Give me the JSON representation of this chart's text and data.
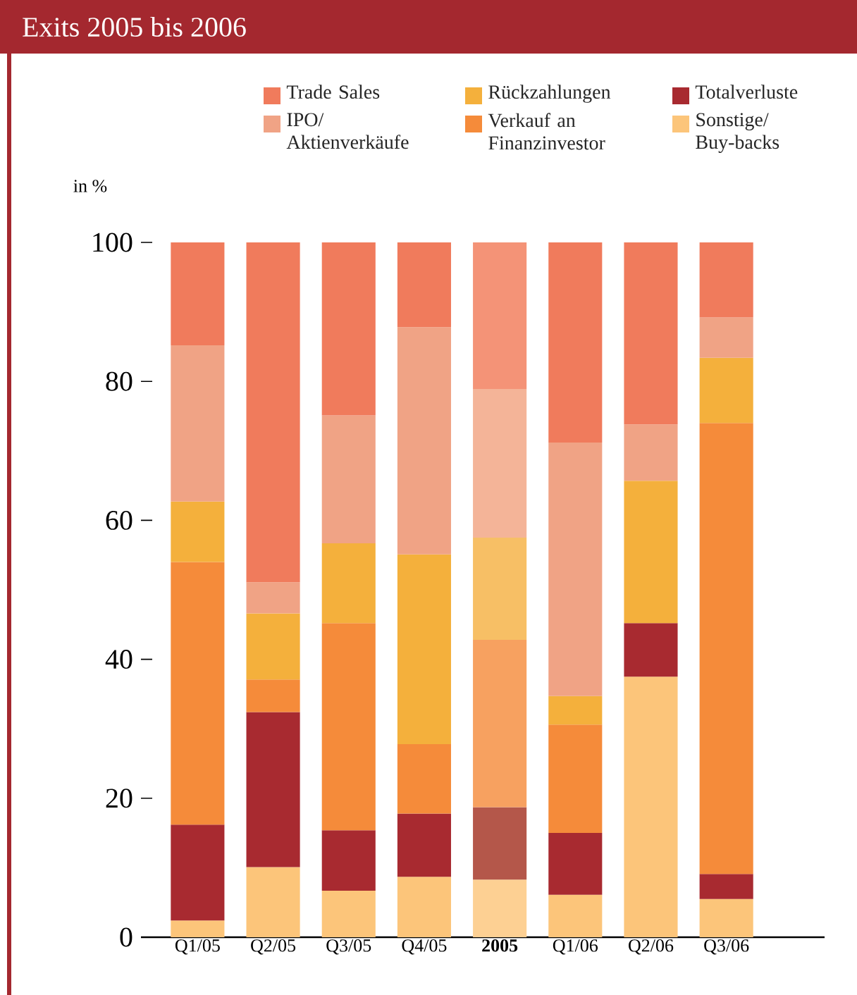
{
  "chart_data": {
    "type": "bar",
    "stacked": true,
    "title": "Exits 2005 bis 2006",
    "ylabel": "in %",
    "categories": [
      "Q1/05",
      "Q2/05",
      "Q3/05",
      "Q4/05",
      "**2005**",
      "Q1/06",
      "Q2/06",
      "Q3/06"
    ],
    "series": [
      {
        "name": "Sonstige/ Buy-backs",
        "color": "#fcc57a",
        "colors": [
          "#fcc57a",
          "#fcc57a",
          "#fcc57a",
          "#fcc57a",
          "#fdd093",
          "#fcc57a",
          "#fcc57a",
          "#fcc57a"
        ],
        "values": [
          2.4,
          10.1,
          6.7,
          8.7,
          8.3,
          6.1,
          37.5,
          5.5
        ]
      },
      {
        "name": "Totalverluste",
        "color": "#a82a30",
        "colors": [
          "#a82a30",
          "#a82a30",
          "#a82a30",
          "#a82a30",
          "#b4574a",
          "#a82a30",
          "#a82a30",
          "#a82a30"
        ],
        "values": [
          13.8,
          22.3,
          8.7,
          9.1,
          10.4,
          8.9,
          7.7,
          3.6
        ]
      },
      {
        "name": "Verkauf an Finanzinvestor",
        "color": "#f58b3a",
        "colors": [
          "#f58b3a",
          "#f58b3a",
          "#f58b3a",
          "#f58b3a",
          "#f7a160",
          "#f58b3a",
          "#f58b3a",
          "#f58b3a"
        ],
        "values": [
          37.8,
          4.7,
          29.8,
          10.0,
          24.1,
          15.6,
          0,
          64.9
        ]
      },
      {
        "name": "Rückzahlungen",
        "color": "#f4b03c",
        "colors": [
          "#f4b03c",
          "#f4b03c",
          "#f4b03c",
          "#f4b03c",
          "#f7bf65",
          "#f4b03c",
          "#f4b03c",
          "#f4b03c"
        ],
        "values": [
          8.7,
          9.5,
          11.5,
          27.3,
          14.7,
          4.1,
          20.5,
          9.4
        ]
      },
      {
        "name": "IPO/ Aktienverkäufe",
        "color": "#f0a385",
        "colors": [
          "#f0a385",
          "#f0a385",
          "#f0a385",
          "#f0a385",
          "#f4b498",
          "#f0a385",
          "#f0a385",
          "#f0a385"
        ],
        "values": [
          22.5,
          4.5,
          18.4,
          32.7,
          21.4,
          36.5,
          8.1,
          5.8
        ]
      },
      {
        "name": "Trade Sales",
        "color": "#f07b5c",
        "colors": [
          "#f07b5c",
          "#f07b5c",
          "#f07b5c",
          "#f07b5c",
          "#f49377",
          "#f07b5c",
          "#f07b5c",
          "#f07b5c"
        ],
        "values": [
          14.8,
          48.9,
          24.9,
          12.2,
          21.1,
          28.8,
          26.2,
          10.8
        ]
      }
    ],
    "ylim": [
      0,
      100
    ],
    "yticks": [
      0,
      20,
      40,
      60,
      80,
      100
    ],
    "legend": "top"
  }
}
